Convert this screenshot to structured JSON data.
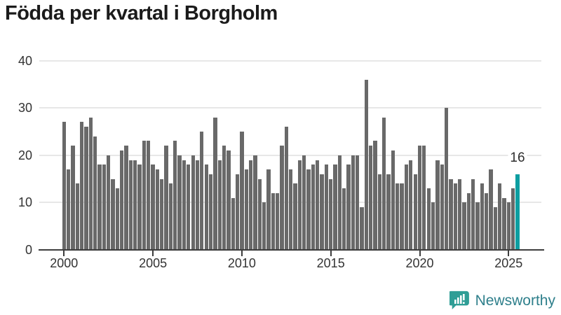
{
  "title": "Födda per kvartal i Borgholm",
  "chart_data": {
    "type": "bar",
    "title": "Födda per kvartal i Borgholm",
    "xlabel": "",
    "ylabel": "",
    "x_unit": "quarter",
    "x_start": {
      "year": 2000,
      "quarter": 1
    },
    "x_end": {
      "year": 2025,
      "quarter": 3
    },
    "values": [
      27,
      17,
      22,
      14,
      27,
      26,
      28,
      24,
      18,
      18,
      20,
      15,
      13,
      21,
      22,
      19,
      19,
      18,
      23,
      23,
      18,
      17,
      15,
      22,
      14,
      23,
      20,
      19,
      18,
      20,
      19,
      25,
      18,
      16,
      28,
      19,
      22,
      21,
      11,
      16,
      25,
      17,
      19,
      20,
      15,
      10,
      17,
      12,
      12,
      22,
      26,
      17,
      14,
      19,
      20,
      17,
      18,
      19,
      16,
      18,
      15,
      18,
      20,
      13,
      18,
      20,
      20,
      9,
      36,
      22,
      23,
      16,
      28,
      16,
      21,
      14,
      14,
      18,
      19,
      16,
      22,
      22,
      13,
      10,
      19,
      18,
      30,
      15,
      14,
      15,
      10,
      12,
      15,
      10,
      14,
      12,
      17,
      9,
      14,
      11,
      10,
      13,
      16
    ],
    "highlight_index": 102,
    "highlight_value_label": "16",
    "ylim": [
      0,
      40
    ],
    "yticks": [
      0,
      10,
      20,
      30,
      40
    ],
    "xtick_years": [
      2000,
      2005,
      2010,
      2015,
      2020,
      2025
    ],
    "grid": true,
    "legend": null,
    "bar_color": "#696969",
    "highlight_color": "#0d9ea1"
  },
  "annotation": {
    "text": "16"
  },
  "footer": {
    "brand": "Newsworthy",
    "logo_color": "#2f9e96",
    "text_color": "#2e7f8b"
  }
}
